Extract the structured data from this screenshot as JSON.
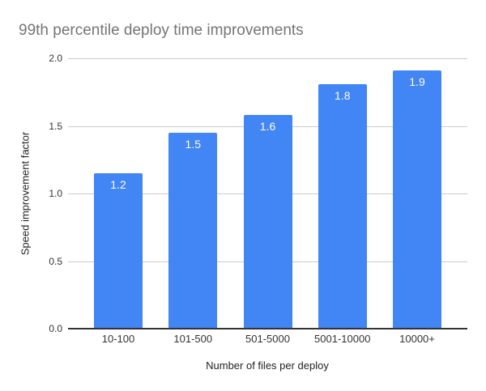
{
  "colors": {
    "background": "#ffffff",
    "bar": "#4285f4",
    "bar_label": "#ffffff",
    "title": "#757575",
    "grid": "#cccccc",
    "axis_line": "#333333",
    "tick_text": "#333333",
    "axis_title_text": "#222222"
  },
  "chart_data": {
    "type": "bar",
    "title": "99th percentile deploy time improvements",
    "categories": [
      "10-100",
      "101-500",
      "501-5000",
      "5001-10000",
      "10000+"
    ],
    "values": [
      1.15,
      1.45,
      1.58,
      1.81,
      1.91
    ],
    "bar_labels": [
      "1.2",
      "1.5",
      "1.6",
      "1.8",
      "1.9"
    ],
    "xlabel": "Number of files per deploy",
    "ylabel": "Speed improvement factor",
    "ylim": [
      0,
      2
    ],
    "yticks": [
      0.0,
      0.5,
      1.0,
      1.5,
      2.0
    ],
    "ytick_labels": [
      "0.0",
      "0.5",
      "1.0",
      "1.5",
      "2.0"
    ],
    "grid": true,
    "legend": "none",
    "series_name": "Speed improvement factor"
  }
}
